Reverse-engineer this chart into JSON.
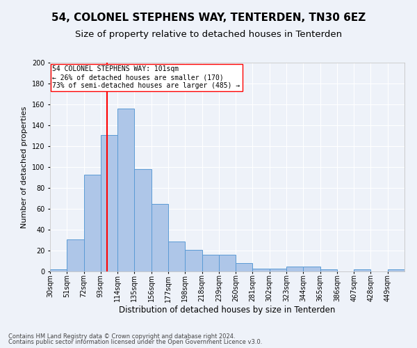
{
  "title": "54, COLONEL STEPHENS WAY, TENTERDEN, TN30 6EZ",
  "subtitle": "Size of property relative to detached houses in Tenterden",
  "xlabel": "Distribution of detached houses by size in Tenterden",
  "ylabel": "Number of detached properties",
  "bar_labels": [
    "30sqm",
    "51sqm",
    "72sqm",
    "93sqm",
    "114sqm",
    "135sqm",
    "156sqm",
    "177sqm",
    "198sqm",
    "218sqm",
    "239sqm",
    "260sqm",
    "281sqm",
    "302sqm",
    "323sqm",
    "344sqm",
    "365sqm",
    "386sqm",
    "407sqm",
    "428sqm",
    "449sqm"
  ],
  "bar_values": [
    2,
    31,
    93,
    131,
    156,
    98,
    65,
    29,
    21,
    16,
    16,
    8,
    3,
    3,
    5,
    5,
    2,
    0,
    2,
    0,
    2
  ],
  "bar_color": "#aec6e8",
  "bar_edge_color": "#5b9bd5",
  "ylim": [
    0,
    200
  ],
  "yticks": [
    0,
    20,
    40,
    60,
    80,
    100,
    120,
    140,
    160,
    180,
    200
  ],
  "property_line_x": 101,
  "property_line_label": "54 COLONEL STEPHENS WAY: 101sqm",
  "annotation_line1": "← 26% of detached houses are smaller (170)",
  "annotation_line2": "73% of semi-detached houses are larger (485) →",
  "footer1": "Contains HM Land Registry data © Crown copyright and database right 2024.",
  "footer2": "Contains public sector information licensed under the Open Government Licence v3.0.",
  "background_color": "#eef2f9",
  "grid_color": "#ffffff",
  "title_fontsize": 11,
  "subtitle_fontsize": 9.5,
  "xlabel_fontsize": 8.5,
  "ylabel_fontsize": 8,
  "tick_fontsize": 7,
  "footer_fontsize": 6,
  "bin_width": 21
}
